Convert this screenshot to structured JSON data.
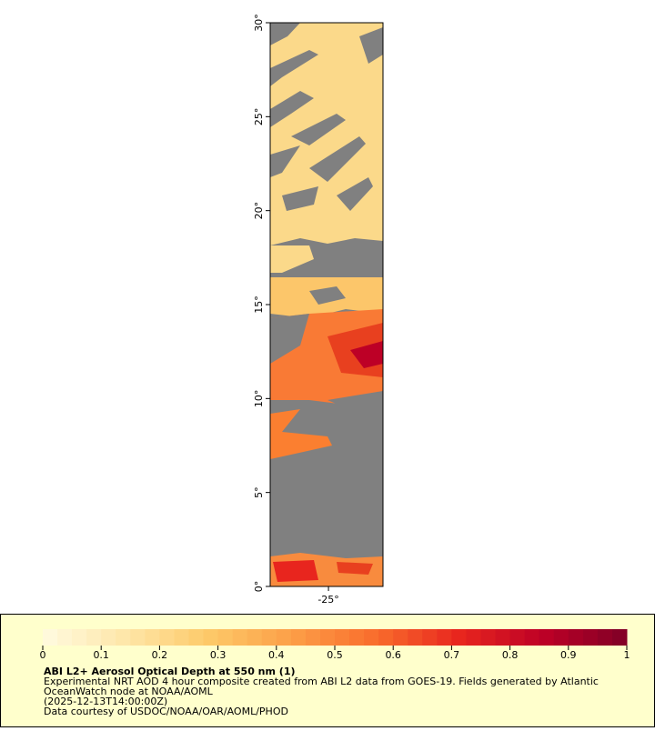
{
  "map": {
    "ylim": [
      0,
      30
    ],
    "yticks": [
      {
        "value": 0,
        "label": "0°"
      },
      {
        "value": 5,
        "label": "5°"
      },
      {
        "value": 10,
        "label": "10°"
      },
      {
        "value": 15,
        "label": "15°"
      },
      {
        "value": 20,
        "label": "20°"
      },
      {
        "value": 25,
        "label": "25°"
      },
      {
        "value": 30,
        "label": "30°"
      }
    ],
    "xlim": [
      -28.1,
      -22.1
    ],
    "xticks": [
      {
        "value": -25,
        "label": "-25°"
      }
    ]
  },
  "legend": {
    "title": "ABI L2+ Aerosol Optical Depth at 550 nm (1)",
    "lines": [
      "Experimental NRT AOD 4 hour composite created from ABI L2 data from GOES-19. Fields generated by Atlantic",
      "OceanWatch node at NOAA/AOML",
      "(2025-12-13T14:00:00Z)",
      "Data courtesy of USDOC/NOAA/OAR/AOML/PHOD"
    ],
    "lim": [
      0,
      1
    ],
    "ticks": [
      0,
      0.1,
      0.2,
      0.3,
      0.4,
      0.5,
      0.6,
      0.7,
      0.8,
      0.9,
      1
    ],
    "palette": [
      "#fffbe0",
      "#fee6a8",
      "#fdc968",
      "#fc9e47",
      "#f96c2c",
      "#e8251e",
      "#bd0026",
      "#800026"
    ]
  }
}
